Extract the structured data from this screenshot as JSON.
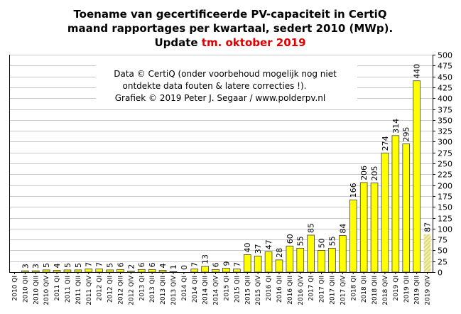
{
  "colors": {
    "bar_fill": "#ffff00",
    "bar_stroke": "#3a3a3a",
    "partial_fill": "#f2eda0",
    "partial_hatch": "#c8c26a",
    "partial_label": "#b4b4b4",
    "gridline": "#c8c8c8",
    "axis": "#000000",
    "title_highlight": "#e00000"
  },
  "chart_data": {
    "type": "bar",
    "title": {
      "line1": "Toename van gecertificeerde PV-capaciteit  in CertiQ",
      "line2": "maand rapportages per kwartaal, sedert 2010 (MWp).",
      "line3_prefix": "Update ",
      "line3_highlight": "tm. oktober 2019"
    },
    "annotation": {
      "line1": "Data © CertiQ (onder voorbehoud mogelijk  nog niet",
      "line2": "ontdekte data fouten & latere correcties !).",
      "line3": "Grafiek  © 2019 Peter J. Segaar / www.polderpv.nl"
    },
    "y_axis": {
      "position": "right",
      "min": 0,
      "max": 500,
      "step": 25
    },
    "grid": {
      "horizontal": true,
      "vertical": false
    },
    "categories": [
      "2010 QI",
      "2010 QII",
      "2010 QIII",
      "2010 QIV",
      "2011 QI",
      "2011 QII",
      "2011 QIII",
      "2011 QIV",
      "2012 QI",
      "2012 QII",
      "2012 QIII",
      "2012 QIV",
      "2013 QI",
      "2013 QII",
      "2013 QIII",
      "2013 QIV",
      "2014 QI",
      "2014 QII",
      "2014 QIII",
      "2014 QIV",
      "2015 QI",
      "2015 QII",
      "2015 QIII",
      "2015 QIV",
      "2016 QI",
      "2016 QII",
      "2016 QIII",
      "2016 QIV",
      "2017 QI",
      "2017 QII",
      "2017 QIII",
      "2017 QIV",
      "2018 QI",
      "2018 QII",
      "2018 QIII",
      "2018 QIV",
      "2019 QI",
      "2019 QII",
      "2019 QIII",
      "2019 QIV"
    ],
    "values": [
      0,
      3,
      3,
      5,
      4,
      5,
      5,
      7,
      7,
      5,
      6,
      2,
      6,
      6,
      4,
      1,
      0,
      7,
      13,
      6,
      9,
      7,
      40,
      37,
      47,
      28,
      60,
      55,
      85,
      50,
      55,
      84,
      166,
      206,
      205,
      274,
      314,
      295,
      440,
      87
    ],
    "value_labels": [
      "",
      "3",
      "3",
      "5",
      "4",
      "5",
      "5",
      "7",
      "7",
      "5",
      "6",
      "2",
      "6",
      "6",
      "4",
      "1",
      "0",
      "7",
      "13",
      "6",
      "9",
      "7",
      "40",
      "37",
      "47",
      "28",
      "60",
      "55",
      "85",
      "50",
      "55",
      "84",
      "166",
      "206",
      "205",
      "274",
      "314",
      "295",
      "440",
      "87"
    ],
    "partial_last": true
  }
}
